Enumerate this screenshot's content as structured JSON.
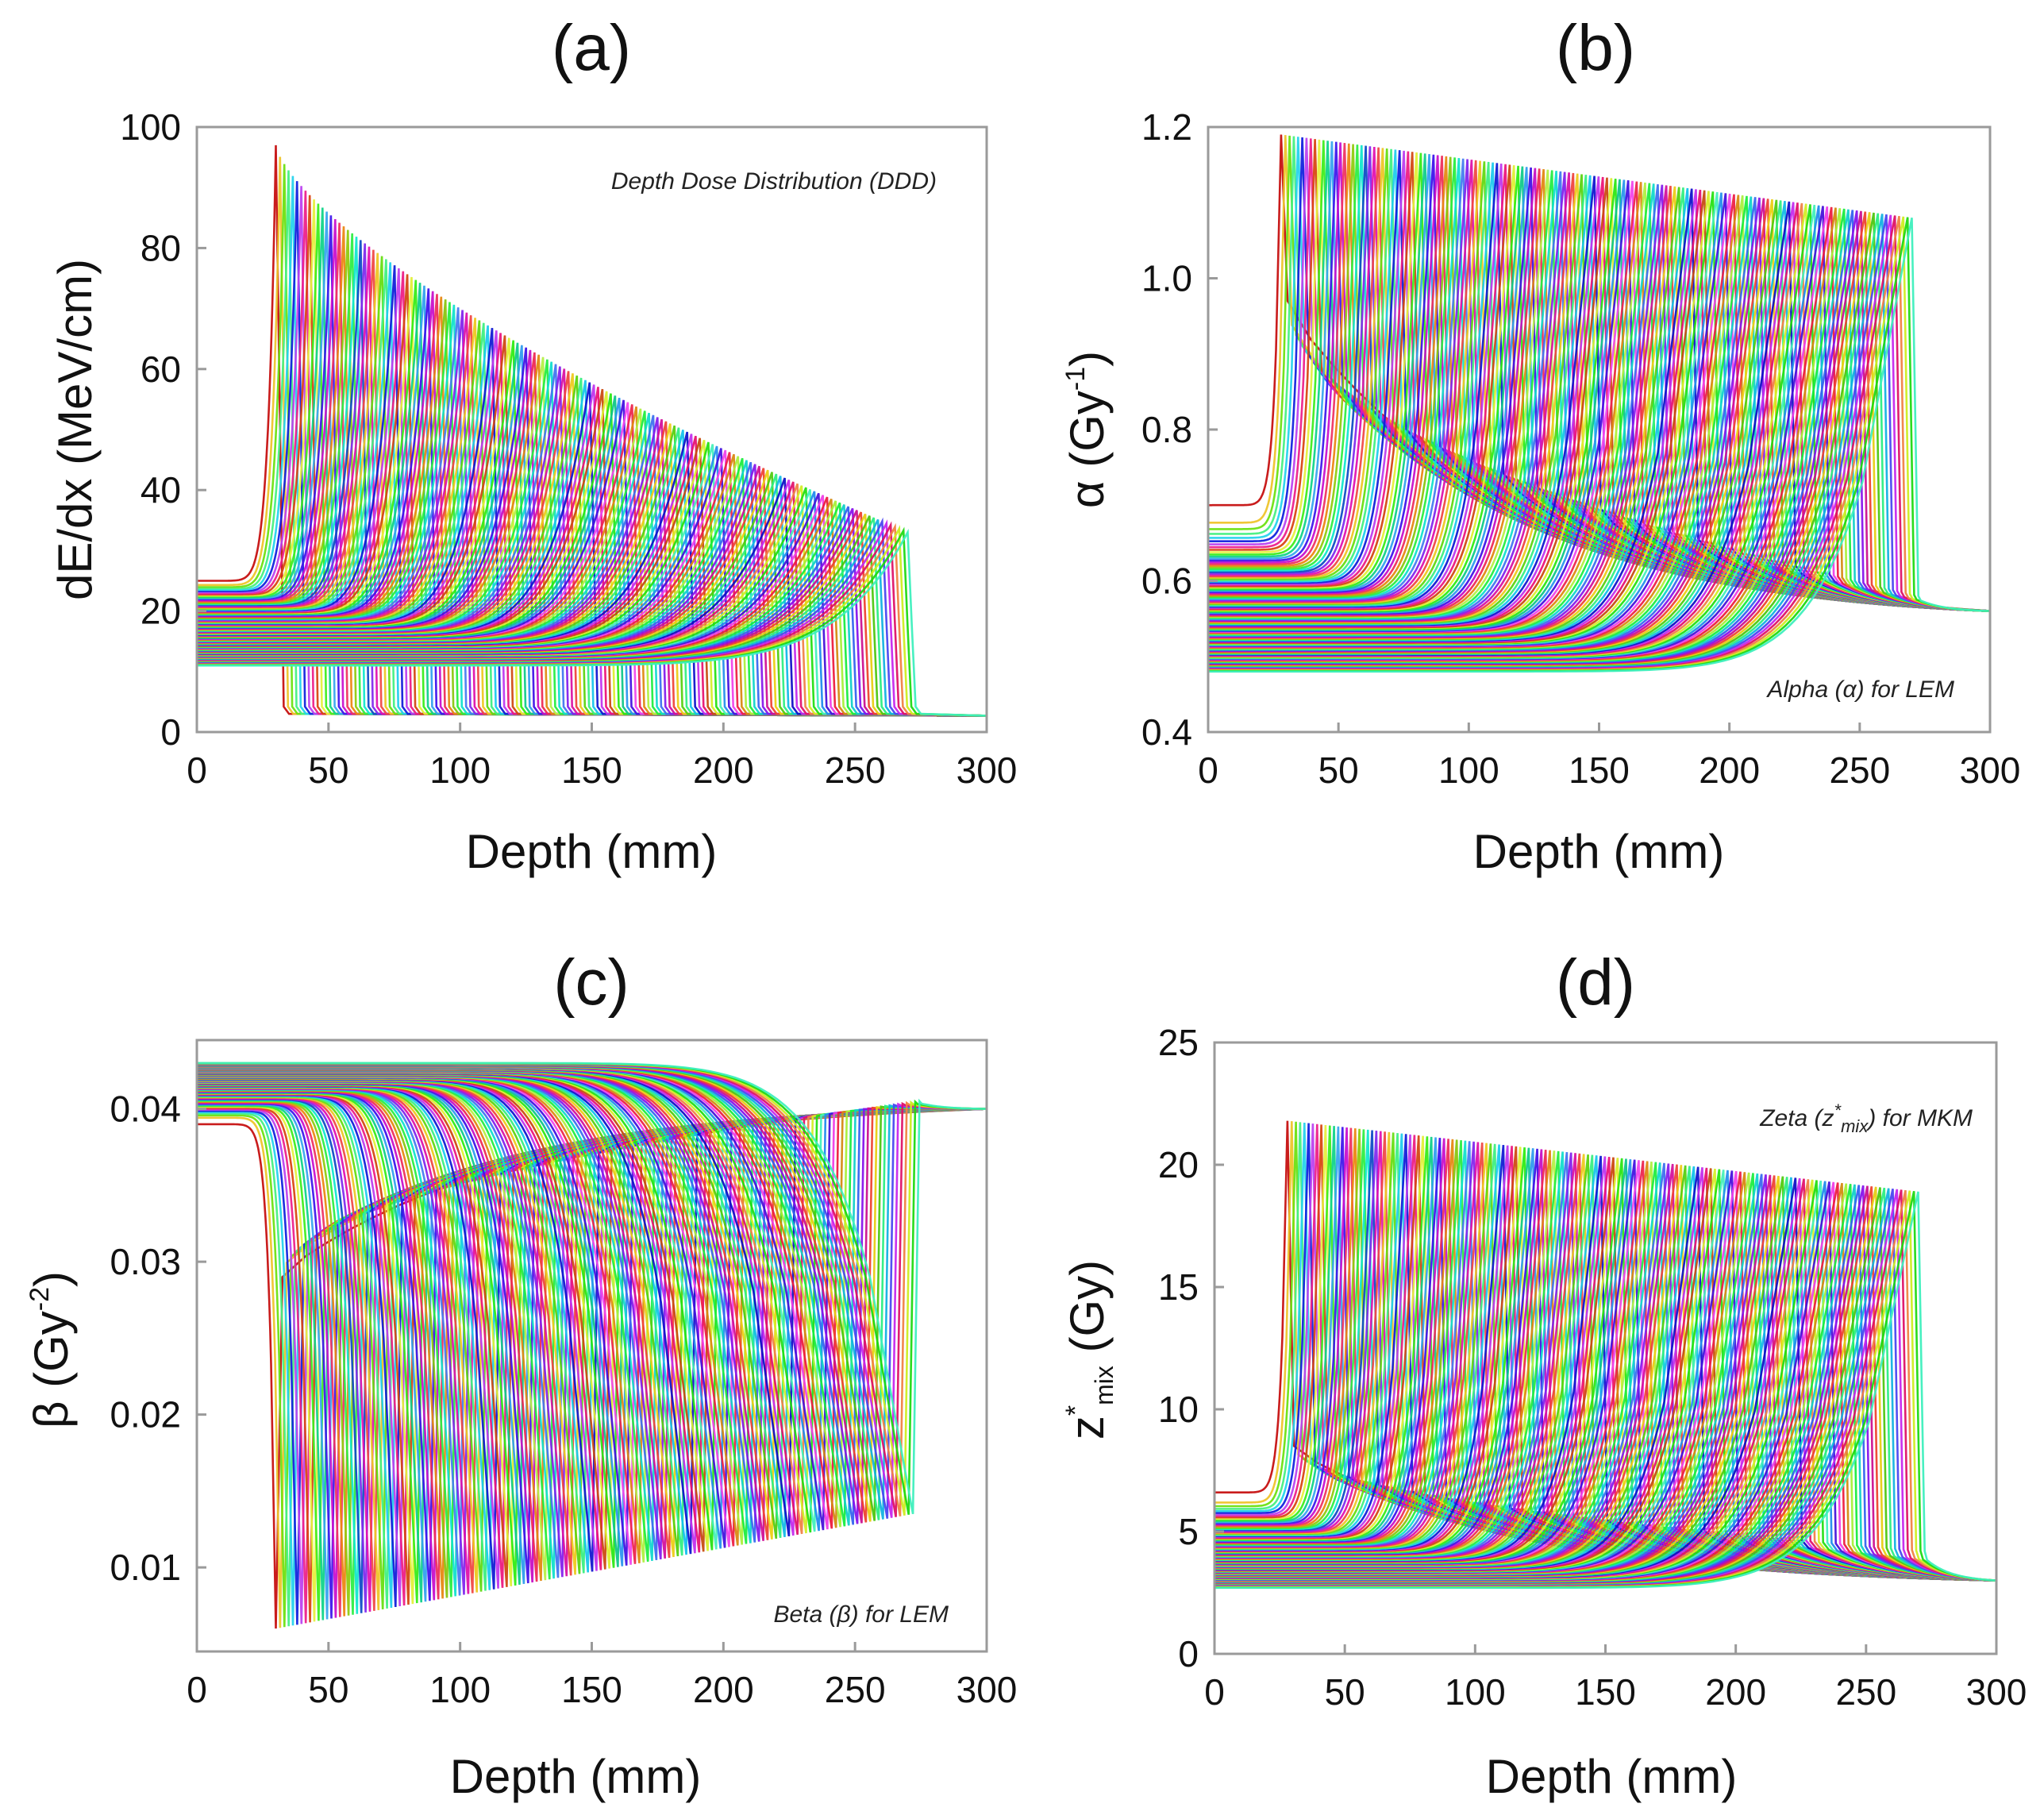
{
  "chart_data": [
    {
      "type": "line",
      "panel": "(a)",
      "xlabel": "Depth (mm)",
      "ylabel": "dE/dx (MeV/cm)",
      "annotation": "Depth Dose Distribution (DDD)",
      "xlim": [
        0,
        300
      ],
      "ylim": [
        0,
        100
      ],
      "xticks": [
        "0",
        "50",
        "100",
        "150",
        "200",
        "250",
        "300"
      ],
      "yticks": [
        "0",
        "20",
        "40",
        "60",
        "80",
        "100"
      ],
      "series_count": 150,
      "envelope": {
        "peak_depth_range": [
          30,
          270
        ],
        "peak_value_first": 97,
        "peak_value_last": 33,
        "entrance_value_first": 25,
        "entrance_value_last": 11,
        "tail_value": 3
      }
    },
    {
      "type": "line",
      "panel": "(b)",
      "xlabel": "Depth (mm)",
      "ylabel_main": "α (Gy",
      "ylabel_sup": "-1",
      "ylabel_end": ")",
      "annotation": "Alpha (α) for LEM",
      "xlim": [
        0,
        300
      ],
      "ylim": [
        0.4,
        1.2
      ],
      "xticks": [
        "0",
        "50",
        "100",
        "150",
        "200",
        "250",
        "300"
      ],
      "yticks": [
        "0.4",
        "0.6",
        "0.8",
        "1.0",
        "1.2"
      ],
      "series_count": 150,
      "envelope": {
        "peak_depth_range": [
          28,
          270
        ],
        "peak_value_first": 1.19,
        "peak_value_last": 1.08,
        "entrance_value_first": 0.7,
        "entrance_value_last": 0.48,
        "tail_start_first": 0.97,
        "tail_end_value": 0.56
      }
    },
    {
      "type": "line",
      "panel": "(c)",
      "xlabel": "Depth (mm)",
      "ylabel_main": "β (Gy",
      "ylabel_sup": "-2",
      "ylabel_end": ")",
      "annotation": "Beta (β) for LEM",
      "xlim": [
        0,
        300
      ],
      "ylim": [
        0.0045,
        0.0445
      ],
      "xticks": [
        "0",
        "50",
        "100",
        "150",
        "200",
        "250",
        "300"
      ],
      "yticks": [
        "0.01",
        "0.02",
        "0.03",
        "0.04"
      ],
      "series_count": 150,
      "envelope": {
        "dip_depth_range": [
          30,
          272
        ],
        "dip_value_first": 0.006,
        "dip_value_last": 0.0135,
        "entrance_value_first": 0.039,
        "entrance_value_last": 0.043,
        "tail_start_first": 0.029,
        "tail_end_value": 0.04
      }
    },
    {
      "type": "line",
      "panel": "(d)",
      "xlabel": "Depth (mm)",
      "ylabel_main": "z",
      "ylabel_sup": "*",
      "ylabel_sub": "mix",
      "ylabel_end": " (Gy)",
      "annotation_main": "Zeta (z",
      "annotation_sup": "*",
      "annotation_sub": "mix",
      "annotation_end": ") for MKM",
      "xlim": [
        0,
        300
      ],
      "ylim": [
        0,
        25
      ],
      "xticks": [
        "0",
        "50",
        "100",
        "150",
        "200",
        "250",
        "300"
      ],
      "yticks": [
        "0",
        "5",
        "10",
        "15",
        "20",
        "25"
      ],
      "series_count": 150,
      "envelope": {
        "peak_depth_range": [
          28,
          270
        ],
        "peak_value_first": 21.8,
        "peak_value_last": 18.9,
        "entrance_value_first": 6.6,
        "entrance_value_last": 2.7,
        "tail_start_first": 8.5,
        "tail_end_value": 3.0
      }
    }
  ]
}
